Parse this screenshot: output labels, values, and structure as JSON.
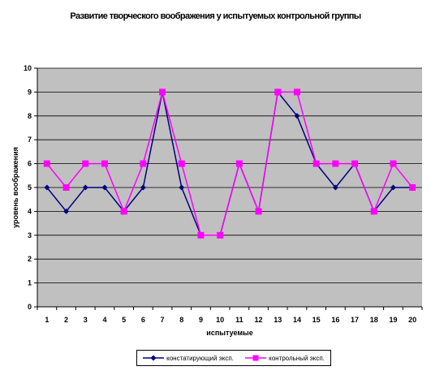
{
  "chart_data": {
    "type": "line",
    "title": "Развитие творческого воображения у испытуемых контрольной группы",
    "xlabel": "испытуемые",
    "ylabel": "уровень воображения",
    "categories": [
      "1",
      "2",
      "3",
      "4",
      "5",
      "6",
      "7",
      "8",
      "9",
      "10",
      "11",
      "12",
      "13",
      "14",
      "15",
      "16",
      "17",
      "18",
      "19",
      "20"
    ],
    "ylim": [
      0,
      10
    ],
    "yticks": [
      "0",
      "1",
      "2",
      "3",
      "4",
      "5",
      "6",
      "7",
      "8",
      "9",
      "10"
    ],
    "grid": true,
    "legend_position": "bottom",
    "series": [
      {
        "name": "констатирующий эксп.",
        "color": "#000080",
        "marker": "diamond",
        "values": [
          5,
          4,
          5,
          5,
          4,
          5,
          9,
          5,
          3,
          3,
          6,
          4,
          9,
          8,
          6,
          5,
          6,
          4,
          5,
          5
        ]
      },
      {
        "name": "контрольный эксп.",
        "color": "#FF00FF",
        "marker": "square",
        "values": [
          6,
          5,
          6,
          6,
          4,
          6,
          9,
          6,
          3,
          3,
          6,
          4,
          9,
          9,
          6,
          6,
          6,
          4,
          6,
          5
        ]
      }
    ]
  }
}
